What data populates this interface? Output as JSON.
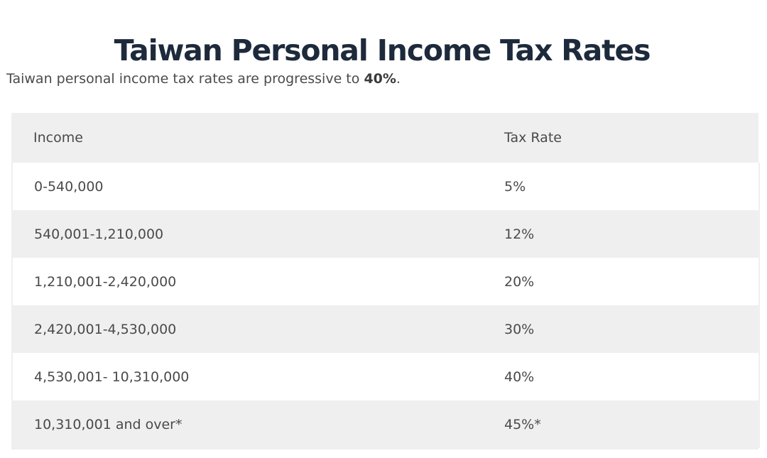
{
  "page": {
    "title": "Taiwan Personal Income Tax Rates",
    "intro_text": "Taiwan personal income tax rates are progressive to ",
    "intro_bold": "40%",
    "intro_end": "."
  },
  "table": {
    "headers": {
      "income": "Income",
      "rate": "Tax Rate"
    },
    "rows": [
      {
        "income": "0-540,000",
        "rate": "5%"
      },
      {
        "income": "540,001-1,210,000",
        "rate": "12%"
      },
      {
        "income": "1,210,001-2,420,000",
        "rate": "20%"
      },
      {
        "income": "2,420,001-4,530,000",
        "rate": "30%"
      },
      {
        "income": "4,530,001- 10,310,000",
        "rate": "40%"
      },
      {
        "income": "10,310,001 and over*",
        "rate": "45%*"
      }
    ]
  }
}
